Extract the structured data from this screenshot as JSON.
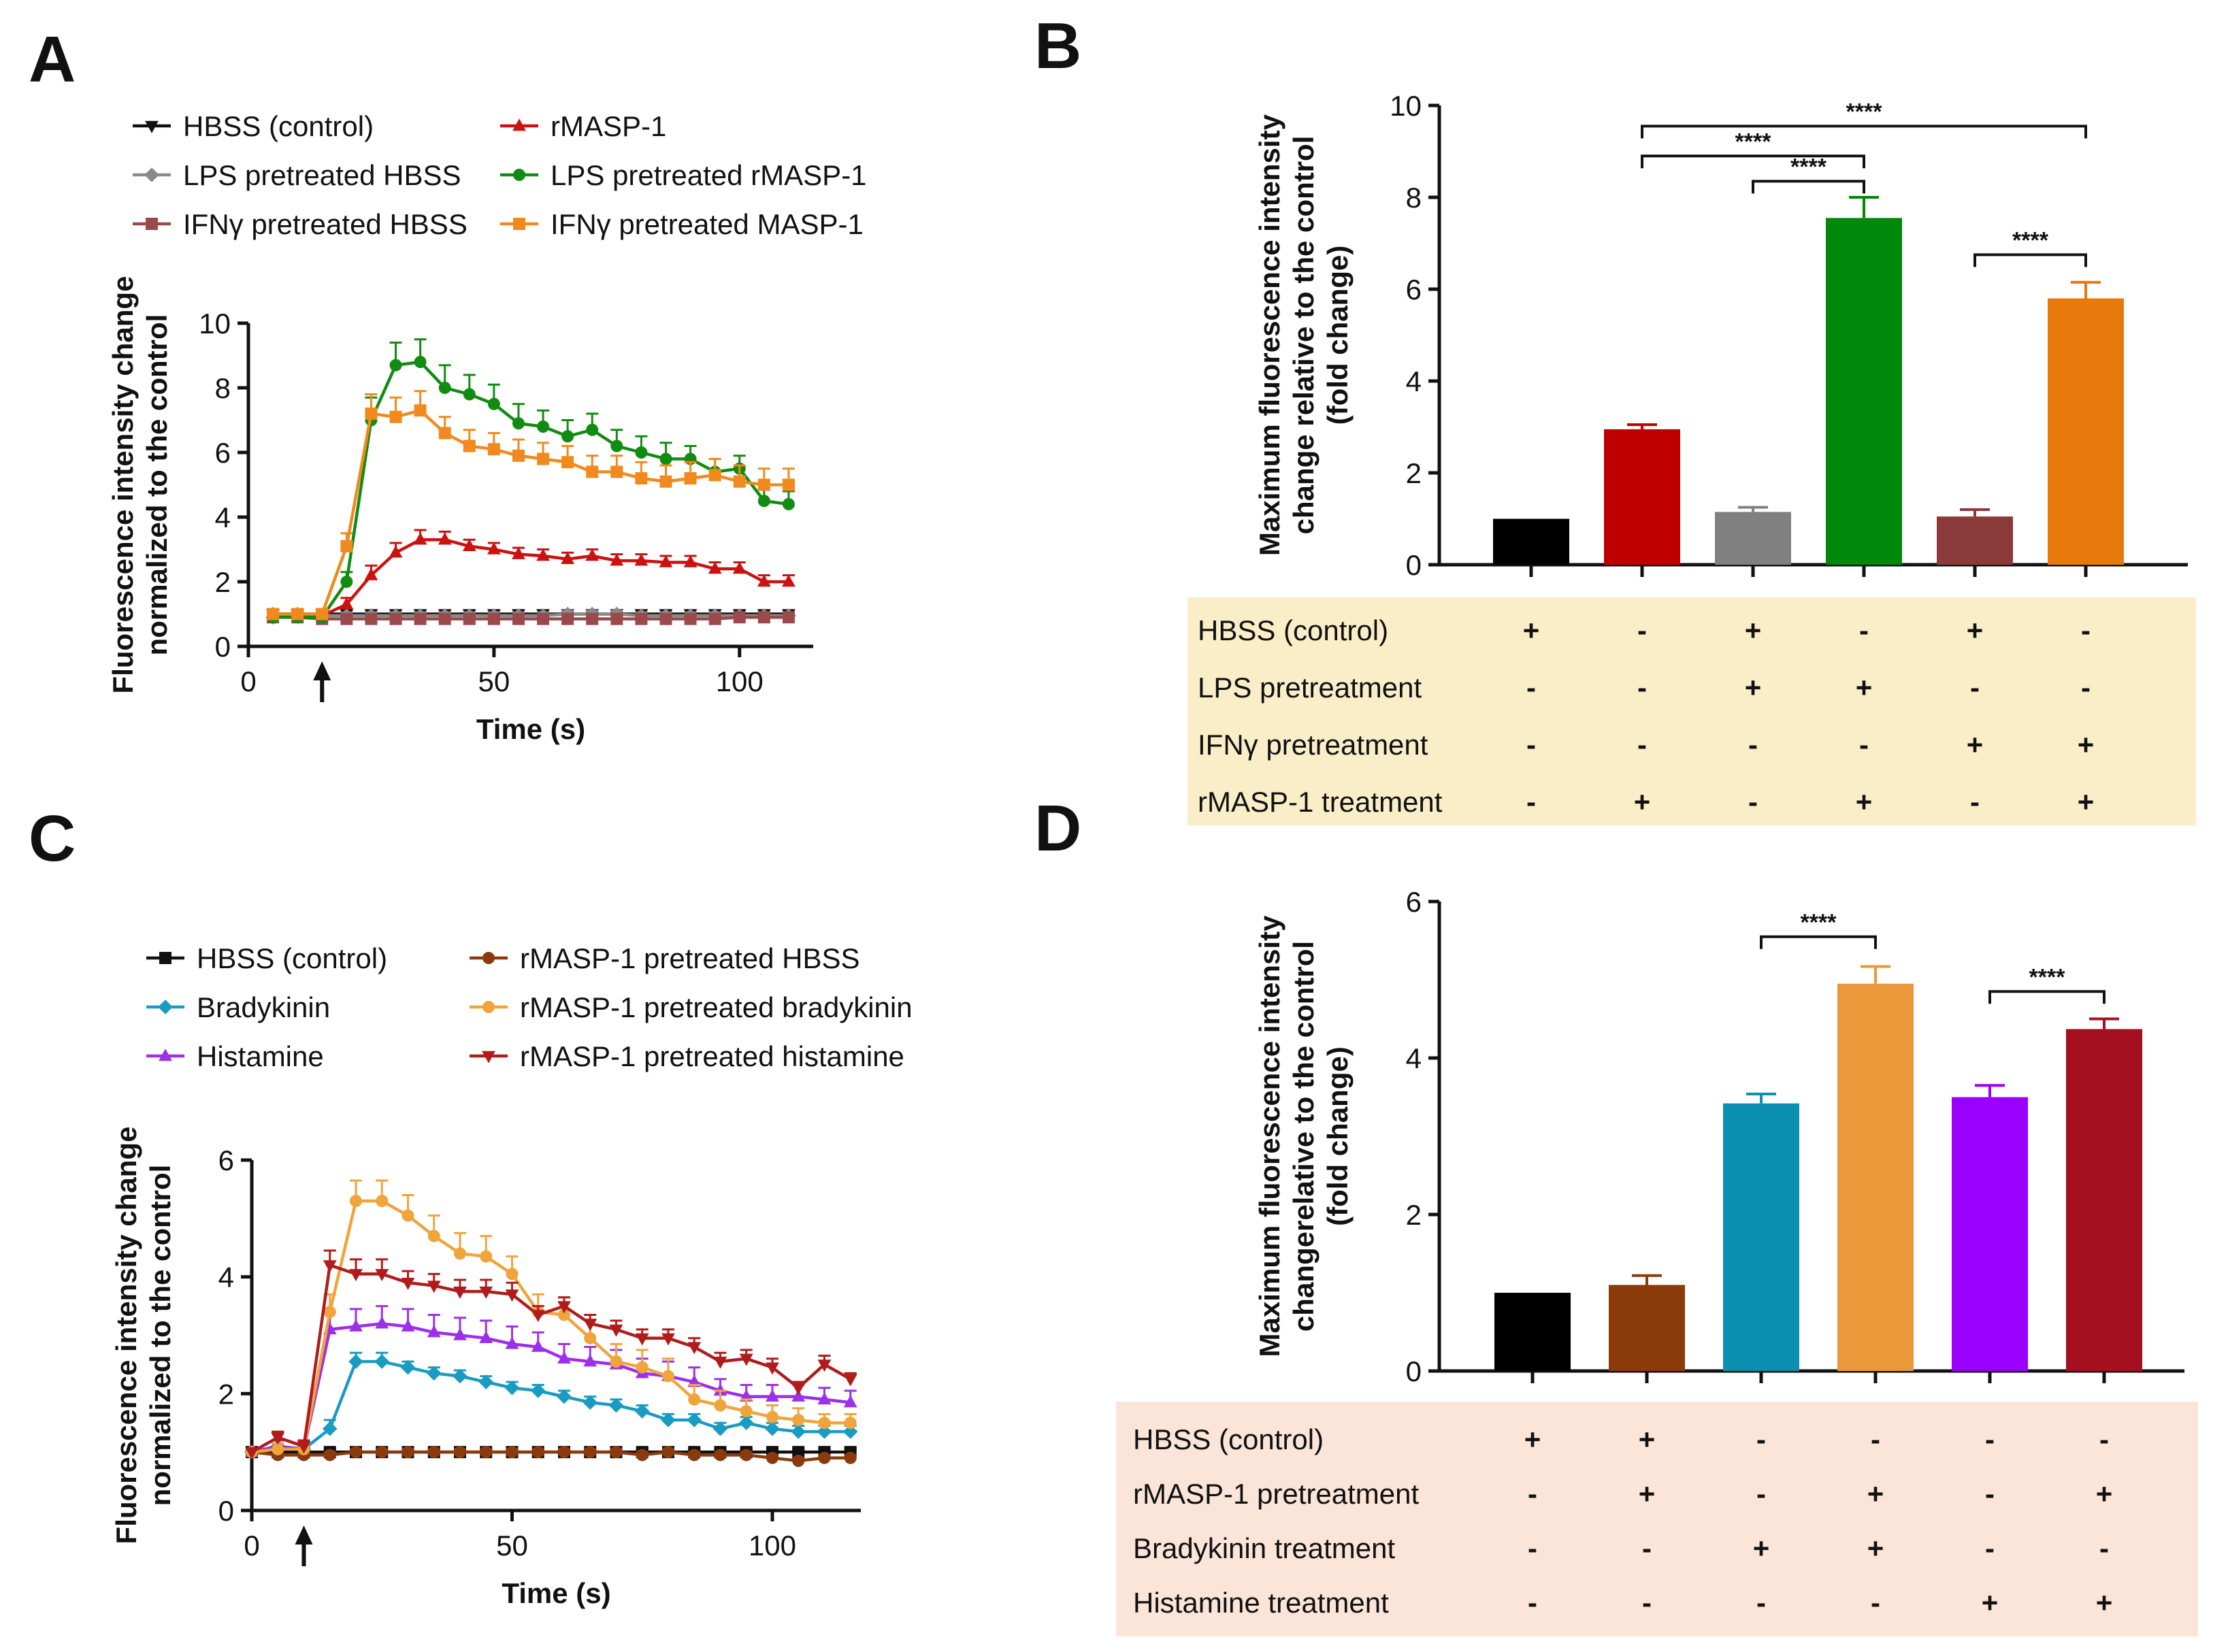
{
  "panels": {
    "A": "A",
    "B": "B",
    "C": "C",
    "D": "D"
  },
  "chart_data": [
    {
      "id": "A",
      "type": "line",
      "xlabel": "Time (s)",
      "ylabel": [
        "Fluorescence intensity change",
        "normalized to the control"
      ],
      "xlim": [
        0,
        115
      ],
      "ylim": [
        0,
        10
      ],
      "xticks": [
        0,
        50,
        100
      ],
      "yticks": [
        0,
        2,
        4,
        6,
        8,
        10
      ],
      "arrow_x": 15,
      "x": [
        5,
        10,
        15,
        20,
        25,
        30,
        35,
        40,
        45,
        50,
        55,
        60,
        65,
        70,
        75,
        80,
        85,
        90,
        95,
        100,
        105,
        110
      ],
      "series": [
        {
          "name": "HBSS (control)",
          "color": "#111111",
          "marker": "tri-down",
          "values": [
            1,
            1,
            1,
            1,
            1,
            1,
            1,
            1,
            1,
            1,
            1,
            1,
            1,
            1,
            1,
            1,
            1,
            1,
            1,
            1,
            1,
            1
          ],
          "err": [
            0.05,
            0.05,
            0.05,
            0.05,
            0.05,
            0.05,
            0.05,
            0.05,
            0.05,
            0.05,
            0.05,
            0.05,
            0.05,
            0.05,
            0.05,
            0.05,
            0.05,
            0.05,
            0.05,
            0.05,
            0.05,
            0.05
          ]
        },
        {
          "name": "LPS pretreated HBSS",
          "color": "#8a8a8a",
          "marker": "diamond",
          "values": [
            0.9,
            0.95,
            0.95,
            0.95,
            0.95,
            0.95,
            0.95,
            0.95,
            0.95,
            0.95,
            0.95,
            0.95,
            1,
            1,
            1,
            0.95,
            0.95,
            0.95,
            0.95,
            0.95,
            0.95,
            0.95
          ],
          "err": [
            0.1,
            0.1,
            0.1,
            0.1,
            0.1,
            0.1,
            0.1,
            0.1,
            0.1,
            0.1,
            0.1,
            0.1,
            0.1,
            0.1,
            0.1,
            0.1,
            0.1,
            0.1,
            0.1,
            0.1,
            0.1,
            0.1
          ]
        },
        {
          "name": "IFNγ pretreated HBSS",
          "color": "#9a4a4a",
          "marker": "square",
          "values": [
            0.9,
            0.9,
            0.85,
            0.85,
            0.85,
            0.85,
            0.85,
            0.85,
            0.85,
            0.85,
            0.85,
            0.85,
            0.85,
            0.85,
            0.85,
            0.85,
            0.85,
            0.85,
            0.85,
            0.9,
            0.9,
            0.9
          ],
          "err": [
            0.08,
            0.08,
            0.08,
            0.08,
            0.08,
            0.08,
            0.08,
            0.08,
            0.08,
            0.08,
            0.08,
            0.08,
            0.08,
            0.08,
            0.08,
            0.08,
            0.08,
            0.08,
            0.08,
            0.08,
            0.08,
            0.08
          ]
        },
        {
          "name": "rMASP-1",
          "color": "#cc1111",
          "marker": "tri-up",
          "values": [
            1,
            1,
            0.95,
            1.3,
            2.2,
            2.9,
            3.3,
            3.3,
            3.1,
            3,
            2.85,
            2.8,
            2.7,
            2.8,
            2.65,
            2.65,
            2.6,
            2.6,
            2.4,
            2.4,
            2,
            2
          ],
          "err": [
            0.1,
            0.1,
            0.1,
            0.2,
            0.3,
            0.3,
            0.3,
            0.25,
            0.2,
            0.2,
            0.2,
            0.2,
            0.2,
            0.2,
            0.2,
            0.2,
            0.2,
            0.2,
            0.2,
            0.2,
            0.2,
            0.2
          ]
        },
        {
          "name": "LPS pretreated rMASP-1",
          "color": "#128b12",
          "marker": "circle",
          "values": [
            0.9,
            0.9,
            0.9,
            2,
            7,
            8.7,
            8.8,
            8,
            7.8,
            7.5,
            6.9,
            6.8,
            6.5,
            6.7,
            6.2,
            6,
            5.8,
            5.8,
            5.4,
            5.5,
            4.5,
            4.4
          ],
          "err": [
            0.1,
            0.1,
            0.1,
            0.3,
            0.7,
            0.7,
            0.7,
            0.7,
            0.6,
            0.6,
            0.6,
            0.5,
            0.5,
            0.5,
            0.5,
            0.5,
            0.5,
            0.4,
            0.4,
            0.4,
            0.4,
            0.4
          ]
        },
        {
          "name": "IFNγ pretreated MASP-1",
          "color": "#f08a1e",
          "marker": "square",
          "values": [
            1,
            1,
            1,
            3.1,
            7.2,
            7.1,
            7.3,
            6.6,
            6.2,
            6.1,
            5.9,
            5.8,
            5.7,
            5.4,
            5.4,
            5.2,
            5.1,
            5.2,
            5.3,
            5.1,
            5,
            5
          ],
          "err": [
            0.1,
            0.1,
            0.1,
            0.4,
            0.6,
            0.6,
            0.6,
            0.5,
            0.5,
            0.5,
            0.5,
            0.5,
            0.5,
            0.5,
            0.5,
            0.5,
            0.5,
            0.5,
            0.5,
            0.5,
            0.5,
            0.5
          ]
        }
      ]
    },
    {
      "id": "B",
      "type": "bar",
      "ylabel": [
        "Maximum fluorescence intensity",
        "change relative to the control",
        "(fold change)"
      ],
      "ylim": [
        0,
        10
      ],
      "yticks": [
        0,
        2,
        4,
        6,
        8,
        10
      ],
      "bars": [
        {
          "value": 1.0,
          "err": 0.0,
          "color": "#000000"
        },
        {
          "value": 2.95,
          "err": 0.1,
          "color": "#c00000"
        },
        {
          "value": 1.15,
          "err": 0.1,
          "color": "#808080"
        },
        {
          "value": 7.55,
          "err": 0.45,
          "color": "#00880a"
        },
        {
          "value": 1.05,
          "err": 0.15,
          "color": "#8b3a3a"
        },
        {
          "value": 5.8,
          "err": 0.35,
          "color": "#e87a0c"
        }
      ],
      "significance": [
        {
          "from": 1,
          "to": 5,
          "label": "****",
          "y": 9.55
        },
        {
          "from": 1,
          "to": 3,
          "label": "****",
          "y": 8.9
        },
        {
          "from": 2,
          "to": 3,
          "label": "****",
          "y": 8.35
        },
        {
          "from": 4,
          "to": 5,
          "label": "****",
          "y": 6.75
        }
      ],
      "table": [
        {
          "label": "HBSS (control)",
          "marks": [
            "+",
            "-",
            "+",
            "-",
            "+",
            "-"
          ]
        },
        {
          "label": "LPS pretreatment",
          "marks": [
            "-",
            "-",
            "+",
            "+",
            "-",
            "-"
          ]
        },
        {
          "label": "IFNγ pretreatment",
          "marks": [
            "-",
            "-",
            "-",
            "-",
            "+",
            "+"
          ]
        },
        {
          "label": "rMASP-1 treatment",
          "marks": [
            "-",
            "+",
            "-",
            "+",
            "-",
            "+"
          ]
        }
      ]
    },
    {
      "id": "C",
      "type": "line",
      "xlabel": "Time (s)",
      "ylabel": [
        "Fluorescence intensity change",
        "normalized to the control"
      ],
      "xlim": [
        0,
        117
      ],
      "ylim": [
        0,
        6
      ],
      "xticks": [
        0,
        50,
        100
      ],
      "yticks": [
        0,
        2,
        4,
        6
      ],
      "arrow_x": 10,
      "x": [
        0,
        5,
        10,
        15,
        20,
        25,
        30,
        35,
        40,
        45,
        50,
        55,
        60,
        65,
        70,
        75,
        80,
        85,
        90,
        95,
        100,
        105,
        110,
        115
      ],
      "series": [
        {
          "name": "HBSS (control)",
          "color": "#111111",
          "marker": "square",
          "values": [
            1,
            1,
            1,
            1,
            1,
            1,
            1,
            1,
            1,
            1,
            1,
            1,
            1,
            1,
            1,
            1,
            1,
            1,
            1,
            1,
            1,
            1,
            1,
            1
          ],
          "err": [
            0.05,
            0.05,
            0.05,
            0.05,
            0.05,
            0.05,
            0.05,
            0.05,
            0.05,
            0.05,
            0.05,
            0.05,
            0.05,
            0.05,
            0.05,
            0.05,
            0.05,
            0.05,
            0.05,
            0.05,
            0.05,
            0.05,
            0.05,
            0.05
          ]
        },
        {
          "name": "Bradykinin",
          "color": "#1a9bc2",
          "marker": "diamond",
          "values": [
            1,
            1.1,
            1.05,
            1.4,
            2.55,
            2.55,
            2.45,
            2.35,
            2.3,
            2.2,
            2.1,
            2.05,
            1.95,
            1.85,
            1.8,
            1.7,
            1.55,
            1.55,
            1.4,
            1.5,
            1.4,
            1.35,
            1.35,
            1.35
          ],
          "err": [
            0.05,
            0.1,
            0.1,
            0.15,
            0.15,
            0.15,
            0.1,
            0.1,
            0.1,
            0.1,
            0.1,
            0.1,
            0.1,
            0.1,
            0.1,
            0.1,
            0.1,
            0.1,
            0.1,
            0.1,
            0.1,
            0.1,
            0.1,
            0.1
          ]
        },
        {
          "name": "Histamine",
          "color": "#9b30ea",
          "marker": "tri-up",
          "values": [
            1,
            1.1,
            1.05,
            3.1,
            3.15,
            3.2,
            3.15,
            3.05,
            3,
            2.95,
            2.85,
            2.8,
            2.6,
            2.55,
            2.5,
            2.35,
            2.3,
            2.2,
            2.05,
            1.95,
            1.95,
            1.95,
            1.9,
            1.85
          ],
          "err": [
            0.05,
            0.1,
            0.1,
            0.3,
            0.3,
            0.3,
            0.3,
            0.3,
            0.3,
            0.3,
            0.3,
            0.25,
            0.25,
            0.25,
            0.25,
            0.25,
            0.25,
            0.25,
            0.2,
            0.2,
            0.2,
            0.2,
            0.2,
            0.2
          ]
        },
        {
          "name": "rMASP-1 pretreated HBSS",
          "color": "#8b3a0e",
          "marker": "circle",
          "values": [
            1,
            0.95,
            0.95,
            0.95,
            1,
            1,
            1,
            1,
            1,
            1,
            1,
            1,
            1,
            1,
            1,
            0.95,
            1,
            0.95,
            0.95,
            0.95,
            0.9,
            0.85,
            0.9,
            0.9
          ],
          "err": [
            0.05,
            0.05,
            0.05,
            0.05,
            0.05,
            0.05,
            0.05,
            0.05,
            0.05,
            0.05,
            0.05,
            0.05,
            0.05,
            0.05,
            0.05,
            0.05,
            0.05,
            0.05,
            0.05,
            0.05,
            0.05,
            0.05,
            0.05,
            0.05
          ]
        },
        {
          "name": "rMASP-1 pretreated bradykinin",
          "color": "#f0a43c",
          "marker": "circle",
          "values": [
            1,
            1.05,
            1.05,
            3.4,
            5.3,
            5.3,
            5.05,
            4.7,
            4.4,
            4.35,
            4.05,
            3.4,
            3.35,
            2.95,
            2.55,
            2.45,
            2.3,
            1.9,
            1.8,
            1.7,
            1.6,
            1.55,
            1.5,
            1.5
          ],
          "err": [
            0.05,
            0.1,
            0.1,
            0.3,
            0.35,
            0.35,
            0.35,
            0.35,
            0.35,
            0.35,
            0.3,
            0.3,
            0.3,
            0.3,
            0.3,
            0.3,
            0.3,
            0.25,
            0.25,
            0.2,
            0.2,
            0.2,
            0.15,
            0.15
          ]
        },
        {
          "name": "rMASP-1 pretreated histamine",
          "color": "#b01c1c",
          "marker": "tri-down",
          "values": [
            1,
            1.25,
            1.1,
            4.2,
            4.05,
            4.05,
            3.9,
            3.85,
            3.75,
            3.75,
            3.7,
            3.35,
            3.5,
            3.2,
            3.1,
            2.95,
            2.95,
            2.8,
            2.55,
            2.6,
            2.45,
            2.1,
            2.5,
            2.25
          ],
          "err": [
            0.05,
            0.1,
            0.1,
            0.25,
            0.25,
            0.25,
            0.2,
            0.2,
            0.2,
            0.2,
            0.2,
            0.15,
            0.15,
            0.15,
            0.15,
            0.15,
            0.15,
            0.15,
            0.15,
            0.15,
            0.15,
            0.1,
            0.15,
            0.1
          ]
        }
      ]
    },
    {
      "id": "D",
      "type": "bar",
      "ylabel": [
        "Maximum fluorescence intensity",
        "changerelative to the control",
        "(fold change)"
      ],
      "ylim": [
        0,
        6
      ],
      "yticks": [
        0,
        2,
        4,
        6
      ],
      "bars": [
        {
          "value": 1.0,
          "err": 0.0,
          "color": "#000000"
        },
        {
          "value": 1.1,
          "err": 0.12,
          "color": "#8b3a0a"
        },
        {
          "value": 3.42,
          "err": 0.12,
          "color": "#0b8fb0"
        },
        {
          "value": 4.95,
          "err": 0.22,
          "color": "#e9983a"
        },
        {
          "value": 3.5,
          "err": 0.15,
          "color": "#9b00ff"
        },
        {
          "value": 4.37,
          "err": 0.13,
          "color": "#a51020"
        }
      ],
      "significance": [
        {
          "from": 2,
          "to": 3,
          "label": "****",
          "y": 5.55
        },
        {
          "from": 4,
          "to": 5,
          "label": "****",
          "y": 4.85
        }
      ],
      "table": [
        {
          "label": "HBSS (control)",
          "marks": [
            "+",
            "+",
            "-",
            "-",
            "-",
            "-"
          ]
        },
        {
          "label": "rMASP-1 pretreatment",
          "marks": [
            "-",
            "+",
            "-",
            "+",
            "-",
            "+"
          ]
        },
        {
          "label": "Bradykinin treatment",
          "marks": [
            "-",
            "-",
            "+",
            "+",
            "-",
            "-"
          ]
        },
        {
          "label": "Histamine treatment",
          "marks": [
            "-",
            "-",
            "-",
            "-",
            "+",
            "+"
          ]
        }
      ]
    }
  ]
}
